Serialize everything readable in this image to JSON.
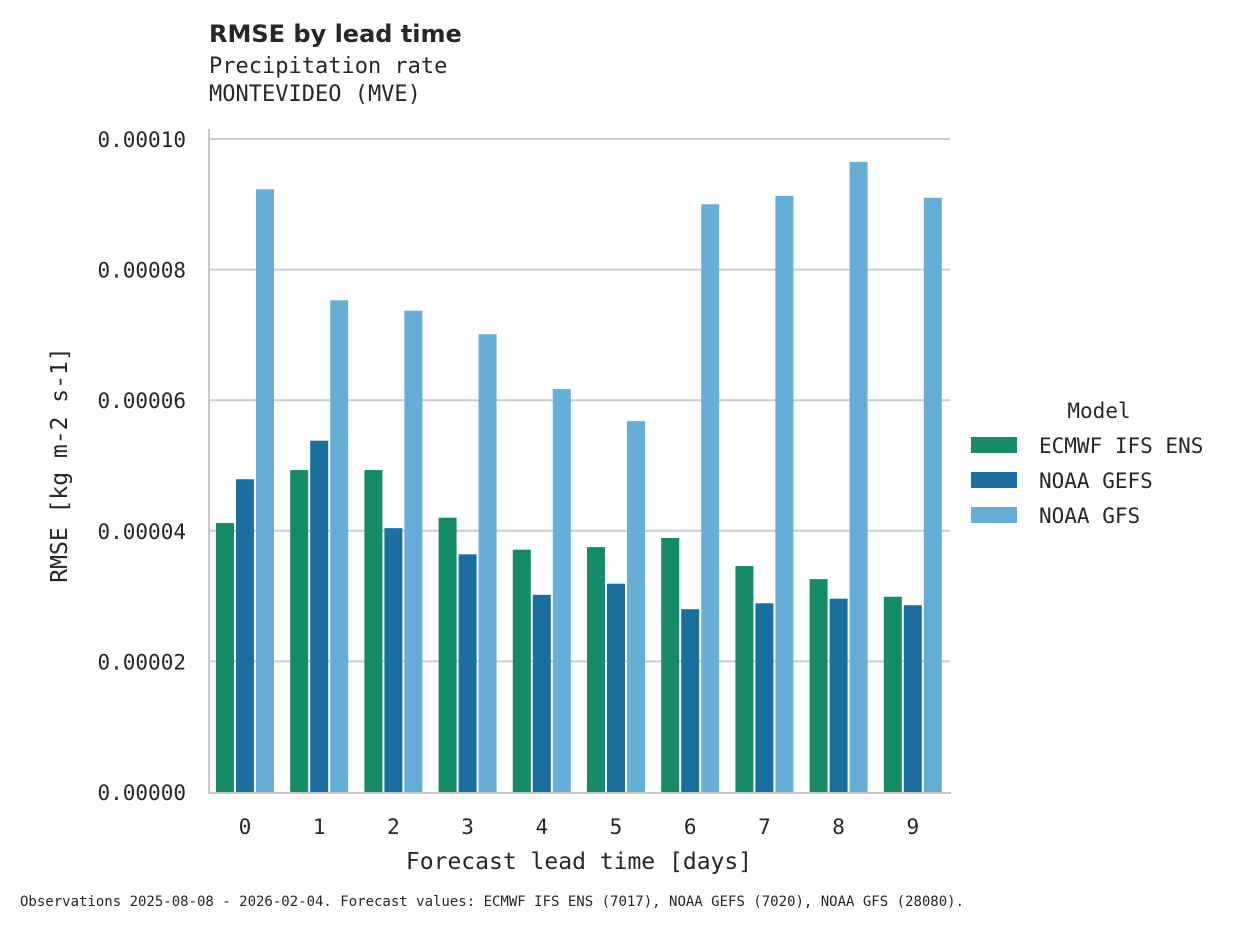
{
  "chart_data": {
    "type": "bar",
    "title": "RMSE by lead time",
    "subtitle": [
      "Precipitation rate",
      "MONTEVIDEO (MVE)"
    ],
    "xlabel": "Forecast lead time [days]",
    "ylabel": "RMSE [kg m-2 s-1]",
    "ylim": [
      0,
      0.0001
    ],
    "yticks": [
      "0.00000",
      "0.00002",
      "0.00004",
      "0.00006",
      "0.00008",
      "0.00010"
    ],
    "ytick_values": [
      0,
      2e-05,
      4e-05,
      6e-05,
      8e-05,
      0.0001
    ],
    "categories": [
      "0",
      "1",
      "2",
      "3",
      "4",
      "5",
      "6",
      "7",
      "8",
      "9"
    ],
    "grid": "horizontal",
    "legend": {
      "title": "Model",
      "placement": "right"
    },
    "series": [
      {
        "name": "ECMWF IFS ENS",
        "color": "#168b69",
        "values": [
          4.12e-05,
          4.93e-05,
          4.93e-05,
          4.2e-05,
          3.71e-05,
          3.75e-05,
          3.89e-05,
          3.46e-05,
          3.26e-05,
          2.99e-05
        ]
      },
      {
        "name": "NOAA GEFS",
        "color": "#1a6f9f",
        "values": [
          4.79e-05,
          5.38e-05,
          4.04e-05,
          3.64e-05,
          3.02e-05,
          3.19e-05,
          2.8e-05,
          2.89e-05,
          2.96e-05,
          2.86e-05
        ]
      },
      {
        "name": "NOAA GFS",
        "color": "#67aed6",
        "values": [
          9.23e-05,
          7.53e-05,
          7.37e-05,
          7.01e-05,
          6.17e-05,
          5.68e-05,
          9e-05,
          9.13e-05,
          9.65e-05,
          9.1e-05
        ]
      }
    ],
    "footnote": "Observations 2025-08-08 - 2026-02-04. Forecast values: ECMWF IFS ENS (7017), NOAA GEFS (7020), NOAA GFS (28080)."
  }
}
